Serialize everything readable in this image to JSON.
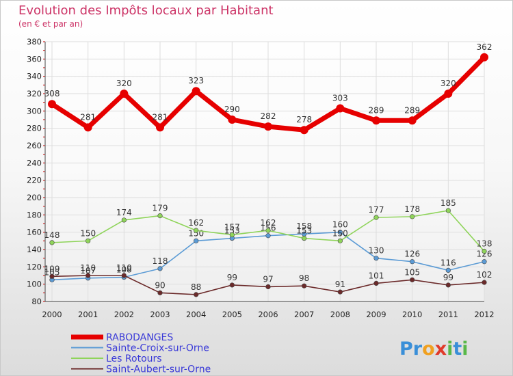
{
  "title": "Evolution des Impôts locaux par Habitant",
  "subtitle": "(en € et par an)",
  "brand": {
    "name": "Proxiti",
    "letters": [
      "P",
      "r",
      "o",
      "x",
      "i",
      "t",
      "i"
    ],
    "colors": [
      "#3a8fd8",
      "#3a8fd8",
      "#f0a020",
      "#e03a2a",
      "#58b848",
      "#3a8fd8",
      "#58b848"
    ]
  },
  "chart_data": {
    "type": "line",
    "title": "Evolution des Impôts locaux par Habitant",
    "ylabel": "(en € et par an)",
    "categories": [
      "2000",
      "2001",
      "2002",
      "2003",
      "2004",
      "2005",
      "2006",
      "2007",
      "2008",
      "2009",
      "2010",
      "2011",
      "2012"
    ],
    "ylim": [
      80,
      380
    ],
    "yticks": [
      80,
      100,
      120,
      140,
      160,
      180,
      200,
      220,
      240,
      260,
      280,
      300,
      320,
      340,
      360,
      380
    ],
    "series": [
      {
        "name": "RABODANGES",
        "color": "#e60000",
        "width": "thick",
        "values": [
          308,
          281,
          320,
          281,
          323,
          290,
          282,
          278,
          303,
          289,
          289,
          320,
          362
        ]
      },
      {
        "name": "Sainte-Croix-sur-Orne",
        "color": "#5b9bd5",
        "width": "thin",
        "values": [
          105,
          107,
          108,
          118,
          150,
          153,
          156,
          158,
          160,
          130,
          126,
          116,
          126
        ]
      },
      {
        "name": "Les Rotours",
        "color": "#8fd45a",
        "width": "thin",
        "values": [
          148,
          150,
          174,
          179,
          162,
          157,
          162,
          153,
          150,
          177,
          178,
          185,
          138
        ]
      },
      {
        "name": "Saint-Aubert-sur-Orne",
        "color": "#6b2a2a",
        "width": "thin",
        "values": [
          109,
          110,
          110,
          90,
          88,
          99,
          97,
          98,
          91,
          101,
          105,
          99,
          102
        ]
      }
    ]
  }
}
